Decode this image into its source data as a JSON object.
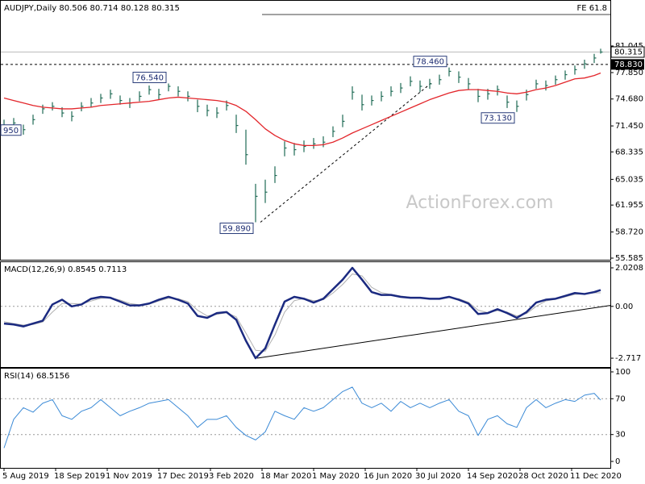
{
  "chart_data": [
    {
      "type": "ohlc",
      "title": "AUDJPY,Daily  80.506 80.714 80.128 80.315",
      "watermark": "ActionForex.com",
      "color": "#1f6b55",
      "xlim": [
        -2.5,
        376
      ],
      "ylim": [
        55.39,
        86.56
      ],
      "yticks": [
        {
          "value": 81.045,
          "label": "81.045"
        },
        {
          "value": 77.85,
          "label": "77.850"
        },
        {
          "value": 74.68,
          "label": "74.680"
        },
        {
          "value": 71.45,
          "label": "71.450"
        },
        {
          "value": 68.335,
          "label": "68.335"
        },
        {
          "value": 65.035,
          "label": "65.035"
        },
        {
          "value": 61.955,
          "label": "61.955"
        },
        {
          "value": 58.72,
          "label": "58.720"
        },
        {
          "value": 55.585,
          "label": "55.585"
        }
      ],
      "x": [
        0,
        6,
        12,
        18,
        24,
        30,
        36,
        42,
        48,
        54,
        60,
        66,
        72,
        78,
        84,
        90,
        96,
        102,
        108,
        114,
        120,
        126,
        132,
        138,
        144,
        150,
        156,
        162,
        168,
        174,
        180,
        186,
        192,
        198,
        204,
        210,
        216,
        222,
        228,
        234,
        240,
        246,
        252,
        258,
        264,
        270,
        276,
        282,
        288,
        294,
        300,
        306,
        312,
        318,
        324,
        330,
        336,
        342,
        348,
        354,
        360,
        366,
        370
      ],
      "high": [
        72.2,
        72.4,
        71.6,
        72.8,
        74.0,
        74.3,
        73.7,
        73.2,
        74.3,
        74.8,
        75.3,
        75.8,
        75.1,
        74.8,
        75.6,
        76.3,
        75.9,
        76.54,
        76.2,
        75.6,
        74.6,
        74.0,
        73.7,
        74.5,
        72.8,
        71.0,
        64.5,
        65.0,
        66.6,
        69.6,
        69.4,
        69.7,
        70.0,
        70.2,
        71.4,
        72.8,
        76.2,
        75.2,
        75.1,
        75.6,
        76.2,
        76.6,
        77.4,
        76.9,
        77.1,
        77.6,
        78.46,
        78.0,
        77.2,
        75.9,
        75.9,
        76.3,
        75.1,
        74.5,
        75.8,
        77.0,
        76.9,
        77.5,
        78.1,
        78.7,
        79.4,
        80.1,
        80.714
      ],
      "low": [
        70.8,
        71.2,
        70.4,
        71.6,
        72.9,
        73.3,
        72.5,
        72.0,
        73.2,
        73.7,
        74.2,
        74.7,
        74.0,
        73.6,
        74.4,
        75.2,
        74.6,
        75.6,
        75.0,
        74.4,
        73.1,
        72.6,
        72.4,
        73.3,
        70.6,
        66.8,
        59.89,
        62.2,
        64.6,
        67.8,
        67.9,
        68.3,
        68.7,
        68.9,
        70.1,
        71.3,
        74.6,
        73.3,
        73.9,
        74.4,
        75.0,
        75.4,
        76.2,
        75.5,
        75.9,
        76.4,
        77.4,
        76.6,
        75.8,
        74.3,
        74.6,
        75.1,
        73.6,
        73.13,
        74.5,
        75.9,
        75.7,
        76.4,
        77.0,
        77.6,
        78.3,
        79.0,
        80.128
      ],
      "close": [
        71.5,
        71.8,
        71.0,
        72.2,
        73.5,
        73.8,
        73.0,
        72.6,
        73.8,
        74.2,
        74.8,
        75.3,
        74.5,
        74.2,
        75.0,
        75.8,
        75.2,
        76.2,
        75.6,
        75.0,
        73.8,
        73.3,
        73.0,
        73.9,
        71.5,
        68.0,
        63.0,
        63.5,
        65.5,
        68.8,
        68.6,
        69.0,
        69.3,
        69.5,
        70.8,
        72.0,
        75.5,
        74.0,
        74.5,
        75.0,
        75.6,
        76.0,
        76.8,
        76.2,
        76.5,
        77.0,
        78.0,
        77.3,
        76.5,
        75.0,
        75.3,
        75.8,
        74.3,
        73.8,
        75.2,
        76.5,
        76.3,
        77.0,
        77.6,
        78.2,
        78.9,
        79.6,
        80.315
      ],
      "moving_average": [
        74.8,
        74.5,
        74.2,
        73.9,
        73.7,
        73.6,
        73.5,
        73.5,
        73.6,
        73.7,
        73.9,
        74.0,
        74.1,
        74.2,
        74.3,
        74.4,
        74.6,
        74.8,
        74.9,
        74.8,
        74.7,
        74.6,
        74.5,
        74.3,
        73.9,
        73.2,
        72.2,
        71.1,
        70.3,
        69.7,
        69.3,
        69.1,
        69.1,
        69.2,
        69.5,
        70.0,
        70.6,
        71.1,
        71.6,
        72.1,
        72.6,
        73.1,
        73.6,
        74.1,
        74.6,
        75.0,
        75.4,
        75.7,
        75.8,
        75.8,
        75.7,
        75.6,
        75.4,
        75.3,
        75.5,
        75.8,
        76.0,
        76.3,
        76.7,
        77.1,
        77.2,
        77.5,
        77.8
      ],
      "moving_average_color": "#e3262b",
      "annotations": [
        {
          "label": "76.540",
          "x": 102,
          "value": 76.54
        },
        {
          "label": "59.890",
          "x": 156,
          "value": 59.89
        },
        {
          "label": "78.460",
          "x": 276,
          "value": 78.46
        },
        {
          "label": "73.130",
          "x": 318,
          "value": 73.13
        },
        {
          "label": "950",
          "x": -2.5,
          "value": 70.95
        }
      ],
      "last_price": {
        "value": 80.315,
        "label": "80.315"
      },
      "support_line": {
        "value": 78.83,
        "label": "78.830"
      },
      "fe_line": {
        "value": 84.82,
        "label": "FE 61.8",
        "x": [
          160,
          376
        ]
      },
      "trendline": {
        "x": [
          159,
          265
        ],
        "y": [
          59.89,
          76.6
        ]
      }
    },
    {
      "type": "macd",
      "title": "MACD(12,26,9) 0.8545 0.7113",
      "xlim": [
        -2.5,
        376
      ],
      "ylim": [
        -3.18,
        2.36
      ],
      "yticks": [
        2.0208,
        {
          "value": 0,
          "label": "0.00"
        },
        -2.717
      ],
      "levels": [
        0
      ],
      "x": [
        0,
        6,
        12,
        18,
        24,
        30,
        36,
        42,
        48,
        54,
        60,
        66,
        72,
        78,
        84,
        90,
        96,
        102,
        108,
        114,
        120,
        126,
        132,
        138,
        144,
        150,
        156,
        162,
        168,
        174,
        180,
        186,
        192,
        198,
        204,
        210,
        216,
        222,
        228,
        234,
        240,
        246,
        252,
        258,
        264,
        270,
        276,
        282,
        288,
        294,
        300,
        306,
        312,
        318,
        324,
        330,
        336,
        342,
        348,
        354,
        360,
        366,
        370
      ],
      "macd": [
        -0.9,
        -0.95,
        -1.05,
        -0.9,
        -0.75,
        0.1,
        0.35,
        0,
        0.1,
        0.4,
        0.5,
        0.45,
        0.25,
        0.05,
        0.05,
        0.15,
        0.35,
        0.5,
        0.35,
        0.15,
        -0.5,
        -0.6,
        -0.35,
        -0.3,
        -0.7,
        -1.8,
        -2.717,
        -2.2,
        -0.95,
        0.25,
        0.5,
        0.4,
        0.2,
        0.4,
        0.9,
        1.4,
        2.0208,
        1.4,
        0.75,
        0.6,
        0.6,
        0.5,
        0.45,
        0.45,
        0.4,
        0.4,
        0.5,
        0.35,
        0.15,
        -0.4,
        -0.35,
        -0.15,
        -0.35,
        -0.6,
        -0.3,
        0.2,
        0.35,
        0.4,
        0.55,
        0.7,
        0.65,
        0.75,
        0.8545
      ],
      "signal": [
        -0.8,
        -0.9,
        -0.98,
        -0.95,
        -0.82,
        -0.3,
        0.15,
        0.15,
        0.12,
        0.28,
        0.42,
        0.46,
        0.33,
        0.15,
        0.08,
        0.12,
        0.28,
        0.43,
        0.4,
        0.25,
        -0.2,
        -0.5,
        -0.42,
        -0.33,
        -0.55,
        -1.4,
        -2.3,
        -2.35,
        -1.5,
        -0.3,
        0.3,
        0.42,
        0.3,
        0.35,
        0.7,
        1.15,
        1.7,
        1.6,
        1.0,
        0.72,
        0.62,
        0.54,
        0.48,
        0.46,
        0.42,
        0.41,
        0.46,
        0.4,
        0.22,
        -0.2,
        -0.33,
        -0.22,
        -0.3,
        -0.5,
        -0.38,
        0.0,
        0.28,
        0.37,
        0.5,
        0.63,
        0.65,
        0.71,
        0.7113
      ],
      "macd_color": "#1b2a80",
      "signal_color": "#b0b0b0",
      "trendline": {
        "x": [
          157,
          376
        ],
        "y": [
          -2.717,
          0.05
        ]
      }
    },
    {
      "type": "line",
      "title": "RSI(14) 68.5156",
      "xlim": [
        -2.5,
        376
      ],
      "ylim": [
        -7.2,
        104.5
      ],
      "yticks": [
        100,
        70,
        30,
        0
      ],
      "levels": [
        70,
        30
      ],
      "color": "#3b8ad6",
      "x": [
        0,
        6,
        12,
        18,
        24,
        30,
        36,
        42,
        48,
        54,
        60,
        66,
        72,
        78,
        84,
        90,
        96,
        102,
        108,
        114,
        120,
        126,
        132,
        138,
        144,
        150,
        156,
        162,
        168,
        174,
        180,
        186,
        192,
        198,
        204,
        210,
        216,
        222,
        228,
        234,
        240,
        246,
        252,
        258,
        264,
        270,
        276,
        282,
        288,
        294,
        300,
        306,
        312,
        318,
        324,
        330,
        336,
        342,
        348,
        354,
        360,
        366,
        370
      ],
      "values": [
        15,
        47,
        60,
        55,
        65,
        69,
        51,
        47,
        56,
        60,
        69,
        60,
        51,
        56,
        60,
        65,
        67,
        69,
        60,
        51,
        38,
        47,
        47,
        51,
        38,
        29,
        24,
        33,
        56,
        51,
        47,
        60,
        56,
        60,
        69,
        78,
        83,
        65,
        60,
        65,
        56,
        67,
        60,
        65,
        60,
        65,
        69,
        56,
        51,
        29,
        47,
        51,
        42,
        38,
        60,
        69,
        60,
        65,
        69,
        67,
        74,
        76,
        68.5156
      ],
      "xticks": [
        {
          "value": 0,
          "label": "5 Aug 2019"
        },
        {
          "value": 32,
          "label": "18 Sep 2019"
        },
        {
          "value": 64,
          "label": "1 Nov 2019"
        },
        {
          "value": 96,
          "label": "17 Dec 2019"
        },
        {
          "value": 128,
          "label": "3 Feb 2020"
        },
        {
          "value": 160,
          "label": "18 Mar 2020"
        },
        {
          "value": 192,
          "label": "1 May 2020"
        },
        {
          "value": 224,
          "label": "16 Jun 2020"
        },
        {
          "value": 256,
          "label": "30 Jul 2020"
        },
        {
          "value": 288,
          "label": "14 Sep 2020"
        },
        {
          "value": 320,
          "label": "28 Oct 2020"
        },
        {
          "value": 352,
          "label": "11 Dec 2020"
        }
      ]
    }
  ]
}
